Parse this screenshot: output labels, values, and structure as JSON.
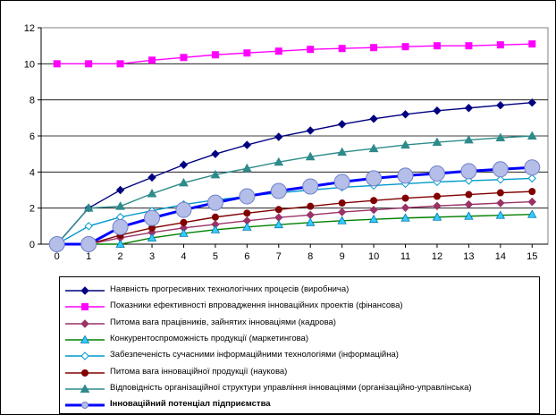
{
  "chart_data": {
    "type": "line",
    "x": [
      0,
      1,
      2,
      3,
      4,
      5,
      6,
      7,
      8,
      9,
      10,
      11,
      12,
      13,
      14,
      15
    ],
    "ylim": [
      0,
      12
    ],
    "yticks": [
      0,
      2,
      4,
      6,
      8,
      10,
      12
    ],
    "grid": "horizontal",
    "legend_position": "bottom",
    "series": [
      {
        "name": "Наявність прогресивних технологічних процесів (виробнича)",
        "color": "#000080",
        "marker": "diamond",
        "values": [
          0,
          2.0,
          3.0,
          3.7,
          4.4,
          5.0,
          5.5,
          5.95,
          6.3,
          6.65,
          6.95,
          7.2,
          7.4,
          7.55,
          7.7,
          7.85
        ]
      },
      {
        "name": "Показники ефективності впровадження інноваційних проектів (фінансова)",
        "color": "#FF00FF",
        "marker": "square",
        "values": [
          10,
          10,
          10,
          10.2,
          10.35,
          10.5,
          10.6,
          10.7,
          10.8,
          10.85,
          10.9,
          10.95,
          11.0,
          11.0,
          11.05,
          11.1
        ]
      },
      {
        "name": "Питома вага працівників, зайнятих інноваціями (кадрова)",
        "color": "#993366",
        "marker": "diamond",
        "values": [
          0,
          0,
          0.35,
          0.65,
          0.9,
          1.1,
          1.3,
          1.48,
          1.62,
          1.78,
          1.9,
          2.02,
          2.12,
          2.2,
          2.28,
          2.35
        ]
      },
      {
        "name": "Конкурентоспроможність продукції (маркетингова)",
        "color": "#008000",
        "marker": "triangle",
        "values": [
          0,
          0,
          0,
          0.35,
          0.6,
          0.8,
          0.95,
          1.08,
          1.2,
          1.3,
          1.38,
          1.45,
          1.5,
          1.55,
          1.6,
          1.65
        ]
      },
      {
        "name": "Забезпеченість сучасними інформаційними технологіями (інформаційна)",
        "color": "#0099CC",
        "marker": "diamond",
        "values": [
          0,
          1.0,
          1.5,
          1.85,
          2.2,
          2.45,
          2.65,
          2.85,
          3.0,
          3.15,
          3.25,
          3.35,
          3.45,
          3.52,
          3.58,
          3.65
        ]
      },
      {
        "name": "Питома вага інноваційної продукції (наукова)",
        "color": "#800000",
        "marker": "circle",
        "values": [
          0,
          0,
          0.5,
          0.9,
          1.2,
          1.5,
          1.72,
          1.92,
          2.1,
          2.28,
          2.42,
          2.55,
          2.65,
          2.75,
          2.85,
          2.92
        ]
      },
      {
        "name": "Відповідність організаційної структури управління інноваціями (організаційно-управлінська)",
        "color": "#2E8B8B",
        "marker": "triangle",
        "values": [
          0,
          2.0,
          2.1,
          2.8,
          3.4,
          3.85,
          4.2,
          4.55,
          4.85,
          5.1,
          5.3,
          5.5,
          5.65,
          5.78,
          5.9,
          6.0
        ]
      },
      {
        "name": "Інноваційний потенціал підприємства",
        "color": "#0000FF",
        "marker": "bigcircle",
        "bold": true,
        "values": [
          0,
          0,
          0.95,
          1.45,
          1.9,
          2.3,
          2.65,
          2.95,
          3.2,
          3.45,
          3.65,
          3.8,
          3.92,
          4.05,
          4.15,
          4.25
        ]
      }
    ]
  }
}
